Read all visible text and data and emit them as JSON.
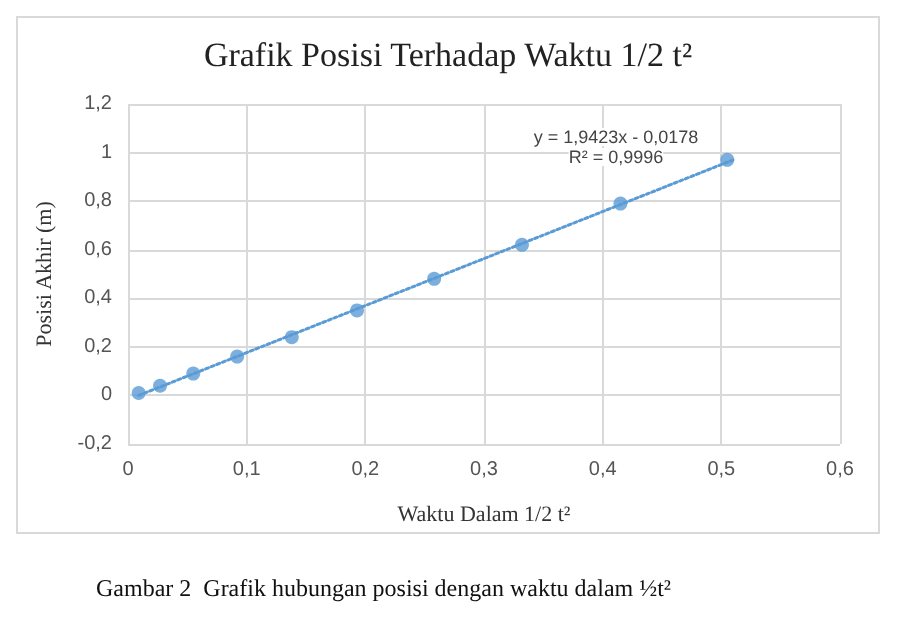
{
  "chart_data": {
    "type": "scatter",
    "title": "Grafik Posisi Terhadap Waktu 1/2 t²",
    "xlabel": "Waktu Dalam 1/2 t²",
    "ylabel": "Posisi Akhir (m)",
    "annotations": [
      "y = 1,9423x - 0,0178",
      "R² = 0,9996",
      "Gambar 2  Grafik hubungan posisi dengan waktu dalam ½t²"
    ],
    "series": [
      {
        "type": "scatter",
        "color": "#5b9bd5",
        "marker": "circle",
        "x": [
          0.009,
          0.027,
          0.055,
          0.092,
          0.138,
          0.193,
          0.258,
          0.332,
          0.415,
          0.505
        ],
        "values": [
          0.01,
          0.04,
          0.09,
          0.16,
          0.24,
          0.35,
          0.48,
          0.62,
          0.79,
          0.97
        ]
      },
      {
        "type": "line",
        "color": "#5b9bd5",
        "marker": "none",
        "line_style": "dotted",
        "x": [
          0.009,
          0.51
        ],
        "values": [
          0.0,
          0.97
        ]
      }
    ],
    "xlim": [
      0,
      0.6
    ],
    "xticks": [
      0,
      {
        "value": 0.1,
        "label": "0,1"
      },
      {
        "value": 0.2,
        "label": "0,2"
      },
      {
        "value": 0.3,
        "label": "0,3"
      },
      {
        "value": 0.4,
        "label": "0,4"
      },
      {
        "value": 0.5,
        "label": "0,5"
      },
      {
        "value": 0.6,
        "label": "0,6"
      }
    ],
    "ylim": [
      -0.2,
      1.2
    ],
    "yticks": [
      {
        "value": -0.2,
        "label": "-0,2"
      },
      0,
      {
        "value": 0.2,
        "label": "0,2"
      },
      {
        "value": 0.4,
        "label": "0,4"
      },
      {
        "value": 0.6,
        "label": "0,6"
      },
      {
        "value": 0.8,
        "label": "0,8"
      },
      1,
      {
        "value": 1.2,
        "label": "1,2"
      }
    ],
    "grid": true
  }
}
